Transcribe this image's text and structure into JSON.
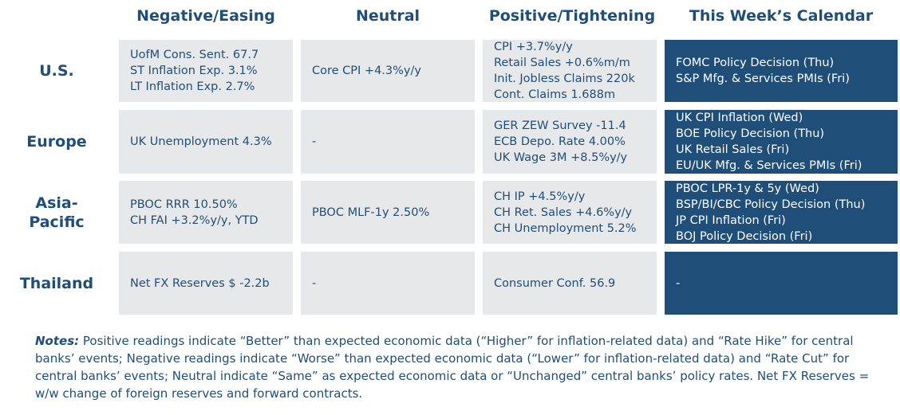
{
  "headers": {
    "negative": "Negative/Easing",
    "neutral": "Neutral",
    "positive": "Positive/Tightening",
    "calendar": "This Week’s Calendar"
  },
  "rows": [
    {
      "label_lines": [
        "U.S."
      ],
      "negative": [
        "UofM Cons. Sent. 67.7",
        "ST Inflation Exp. 3.1%",
        "LT Inflation Exp. 2.7%"
      ],
      "neutral": [
        "Core CPI +4.3%y/y"
      ],
      "positive": [
        "CPI +3.7%y/y",
        "Retail Sales +0.6%m/m",
        "Init. Jobless Claims 220k",
        "Cont. Claims 1.688m"
      ],
      "calendar": [
        "FOMC Policy Decision (Thu)",
        "S&P Mfg. & Services PMIs (Fri)"
      ]
    },
    {
      "label_lines": [
        "Europe"
      ],
      "negative": [
        "UK Unemployment 4.3%"
      ],
      "neutral": [
        "-"
      ],
      "positive": [
        "GER ZEW Survey -11.4",
        "ECB Depo. Rate 4.00%",
        "UK Wage 3M +8.5%y/y"
      ],
      "calendar": [
        "UK CPI Inflation (Wed)",
        "BOE Policy Decision (Thu)",
        "UK Retail Sales (Fri)",
        "EU/UK Mfg. & Services PMIs (Fri)"
      ]
    },
    {
      "label_lines": [
        "Asia-",
        "Pacific"
      ],
      "negative": [
        "PBOC RRR 10.50%",
        "CH FAI +3.2%y/y, YTD"
      ],
      "neutral": [
        "PBOC MLF-1y 2.50%"
      ],
      "positive": [
        "CH IP +4.5%y/y",
        "CH Ret. Sales +4.6%y/y",
        "CH Unemployment 5.2%"
      ],
      "calendar": [
        "PBOC LPR-1y & 5y (Wed)",
        "BSP/BI/CBC Policy Decision (Thu)",
        "JP CPI Inflation (Fri)",
        "BOJ Policy Decision (Fri)"
      ]
    },
    {
      "label_lines": [
        "Thailand"
      ],
      "negative": [
        "Net FX Reserves $ -2.2b"
      ],
      "neutral": [
        "-"
      ],
      "positive": [
        "Consumer Conf. 56.9"
      ],
      "calendar": [
        "-"
      ]
    }
  ],
  "notes": {
    "label": "Notes:",
    "text": " Positive readings indicate “Better” than expected economic data (“Higher” for inflation-related data) and “Rate Hike” for central banks’ events; Negative readings indicate “Worse” than expected economic data (“Lower” for inflation-related data) and “Rate Cut” for central banks’ events; Neutral indicate “Same” as expected economic data or “Unchanged” central banks’ policy rates. Net FX Reserves = w/w change of foreign reserves and forward contracts."
  }
}
